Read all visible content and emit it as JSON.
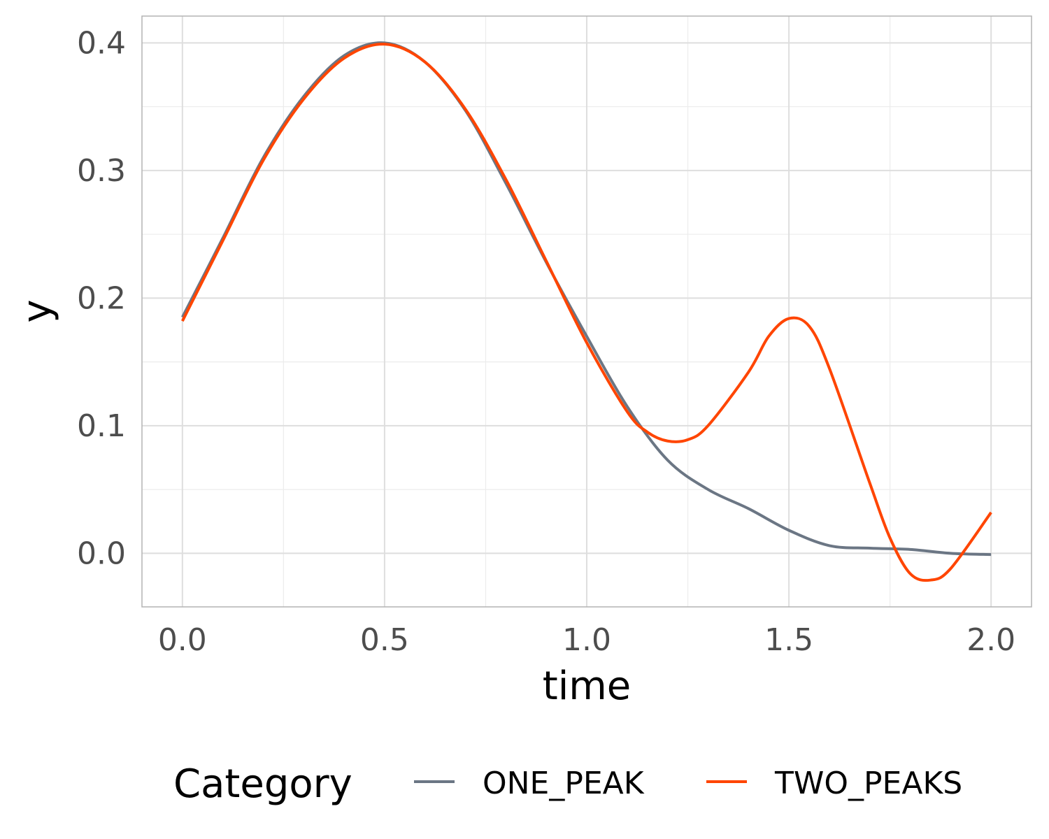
{
  "chart_data": {
    "type": "line",
    "xlabel": "time",
    "ylabel": "y",
    "xlim": [
      -0.1,
      2.1
    ],
    "ylim": [
      -0.042,
      0.421
    ],
    "x_ticks": [
      "0.0",
      "0.5",
      "1.0",
      "1.5",
      "2.0"
    ],
    "y_ticks": [
      "0.0",
      "0.1",
      "0.2",
      "0.3",
      "0.4"
    ],
    "grid": true,
    "legend": {
      "title": "Category",
      "placement": "bottom"
    },
    "series": [
      {
        "name": "ONE_PEAK",
        "color": "#6b7684",
        "points": [
          [
            0.0,
            0.185
          ],
          [
            0.1,
            0.247
          ],
          [
            0.2,
            0.31
          ],
          [
            0.3,
            0.358
          ],
          [
            0.4,
            0.39
          ],
          [
            0.5,
            0.4
          ],
          [
            0.6,
            0.385
          ],
          [
            0.7,
            0.347
          ],
          [
            0.8,
            0.29
          ],
          [
            0.9,
            0.228
          ],
          [
            1.0,
            0.17
          ],
          [
            1.1,
            0.115
          ],
          [
            1.2,
            0.073
          ],
          [
            1.3,
            0.05
          ],
          [
            1.4,
            0.035
          ],
          [
            1.5,
            0.018
          ],
          [
            1.6,
            0.006
          ],
          [
            1.7,
            0.004
          ],
          [
            1.8,
            0.003
          ],
          [
            1.9,
            0.0
          ],
          [
            2.0,
            -0.001
          ]
        ]
      },
      {
        "name": "TWO_PEAKS",
        "color": "#ff4500",
        "points": [
          [
            0.0,
            0.182
          ],
          [
            0.1,
            0.245
          ],
          [
            0.2,
            0.308
          ],
          [
            0.3,
            0.356
          ],
          [
            0.4,
            0.388
          ],
          [
            0.5,
            0.399
          ],
          [
            0.6,
            0.385
          ],
          [
            0.7,
            0.348
          ],
          [
            0.8,
            0.293
          ],
          [
            0.9,
            0.229
          ],
          [
            1.0,
            0.165
          ],
          [
            1.1,
            0.111
          ],
          [
            1.15,
            0.095
          ],
          [
            1.2,
            0.088
          ],
          [
            1.25,
            0.089
          ],
          [
            1.3,
            0.1
          ],
          [
            1.4,
            0.142
          ],
          [
            1.45,
            0.17
          ],
          [
            1.5,
            0.184
          ],
          [
            1.55,
            0.178
          ],
          [
            1.6,
            0.145
          ],
          [
            1.7,
            0.055
          ],
          [
            1.75,
            0.012
          ],
          [
            1.8,
            -0.016
          ],
          [
            1.85,
            -0.021
          ],
          [
            1.9,
            -0.012
          ],
          [
            2.0,
            0.032
          ]
        ]
      }
    ]
  }
}
